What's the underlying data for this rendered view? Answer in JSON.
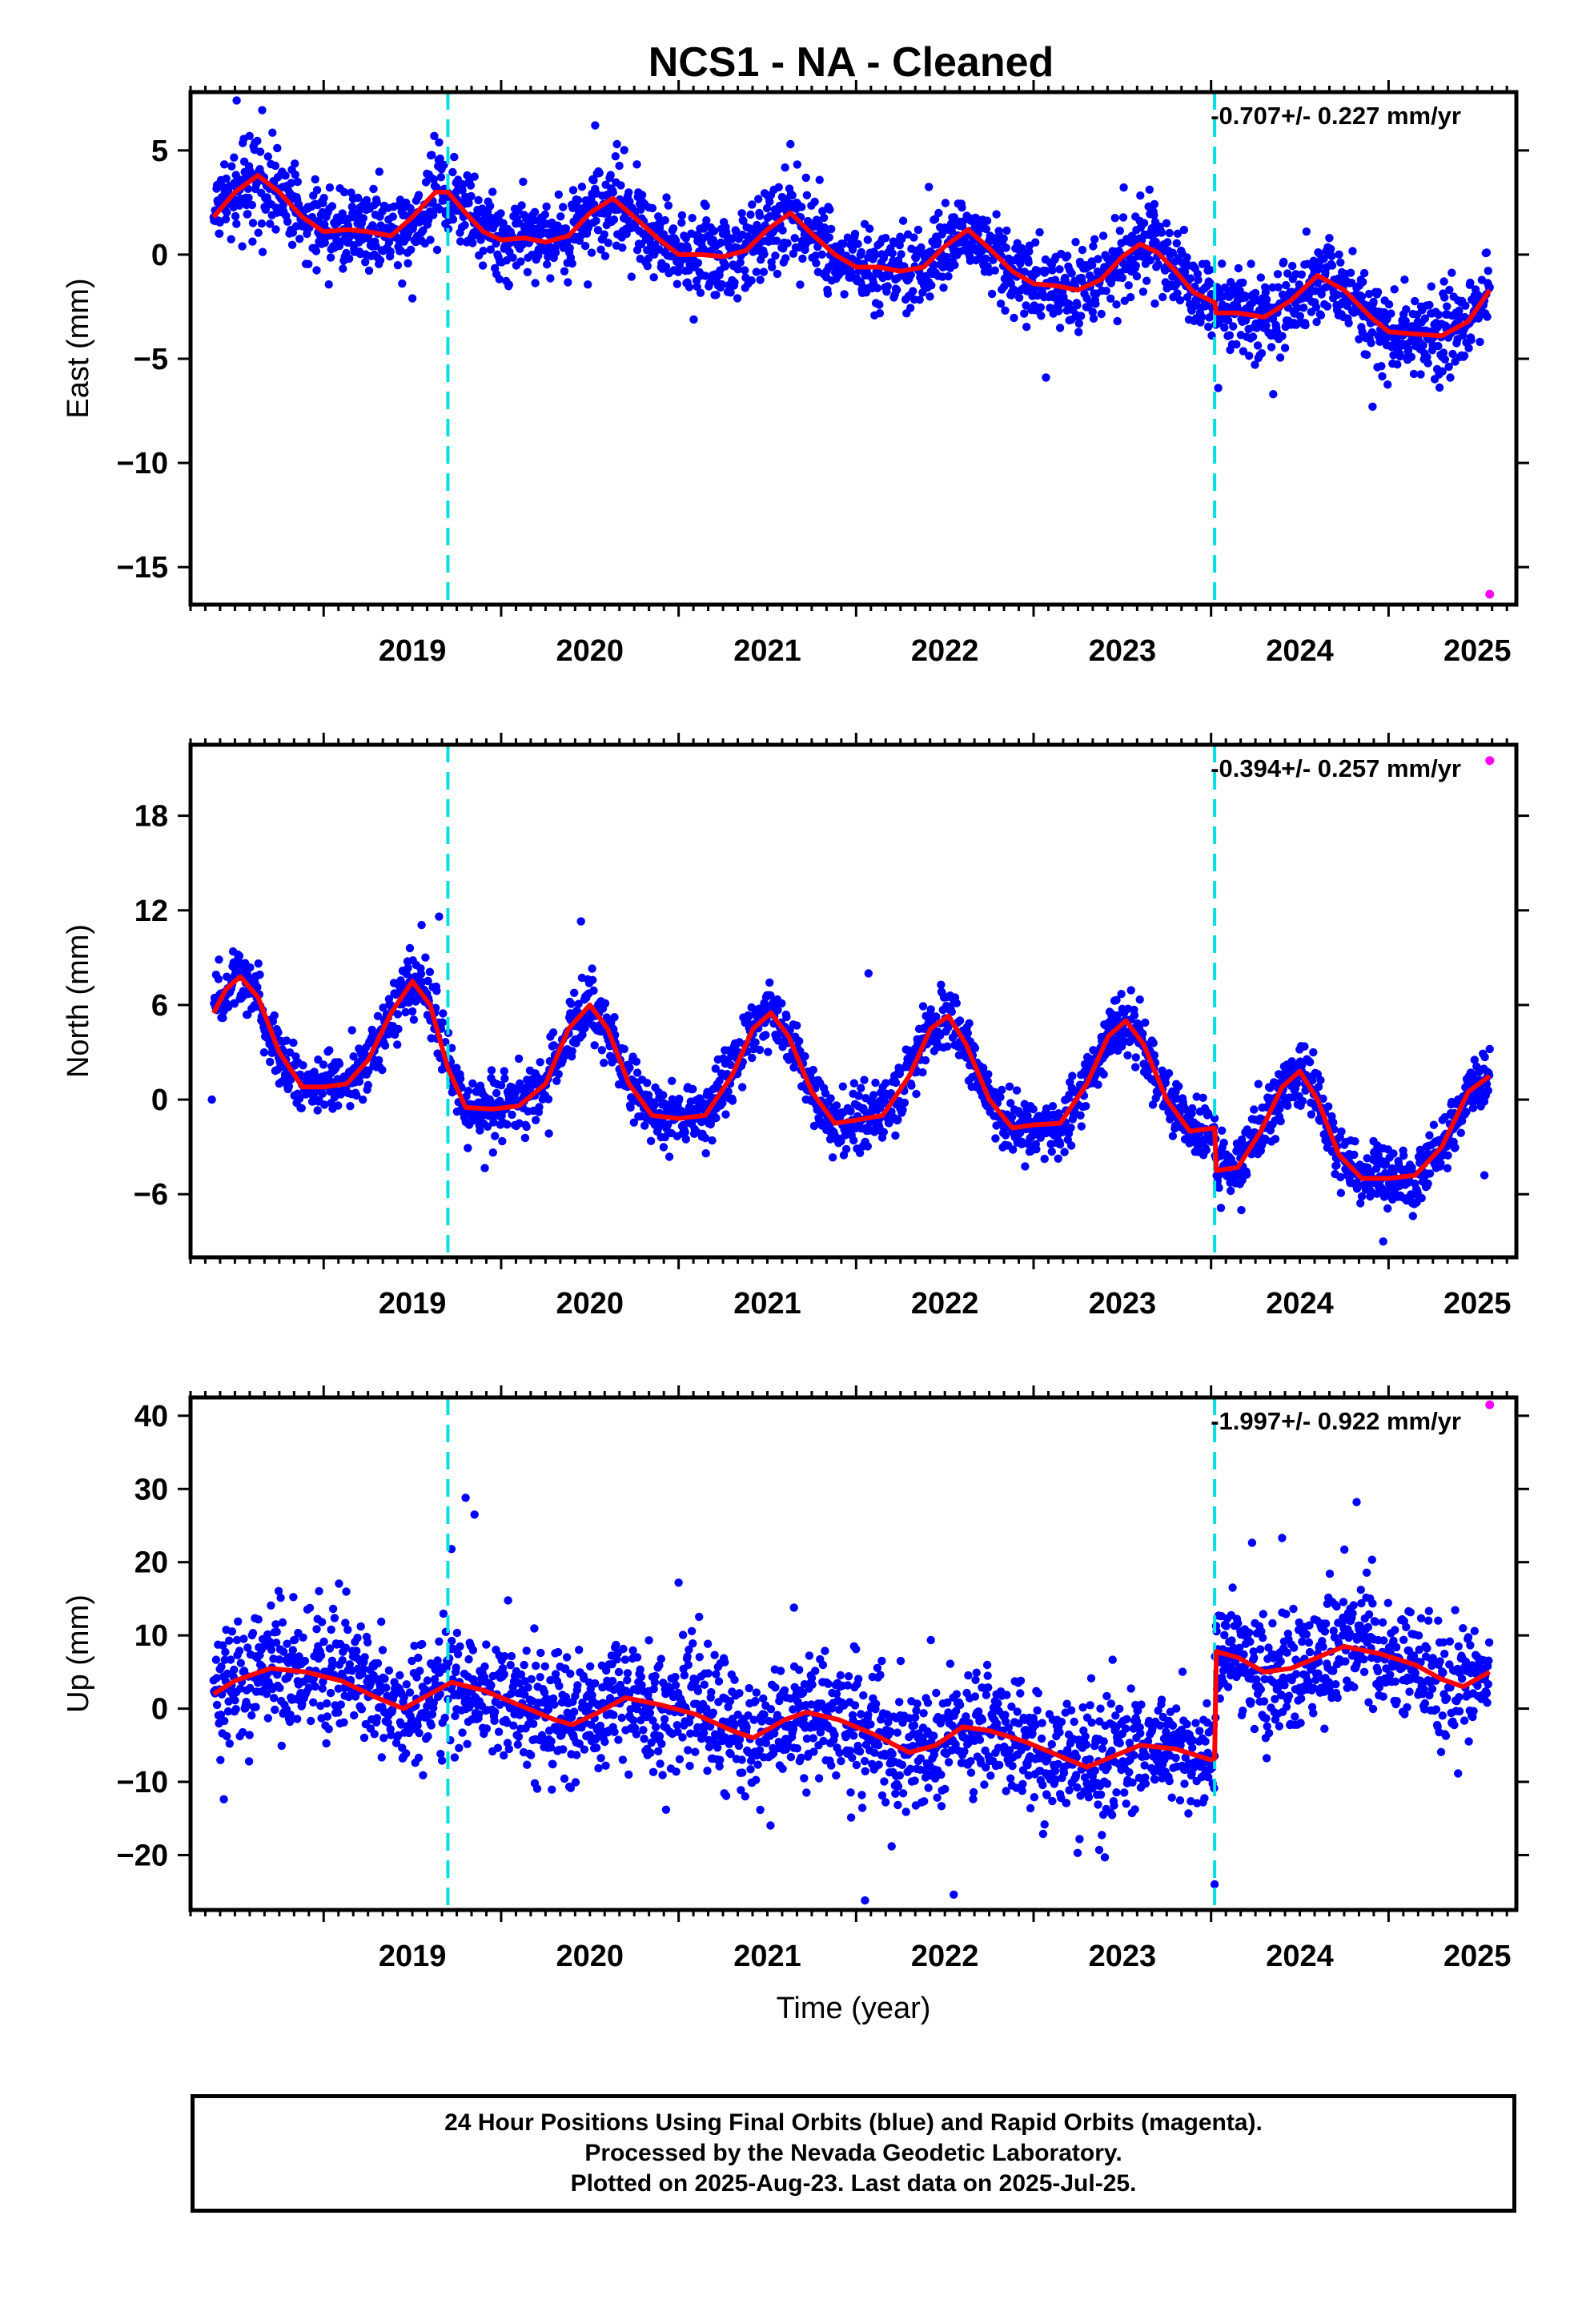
{
  "title": "NCS1  - NA - Cleaned",
  "colors": {
    "final_orbit_points": "#0000ff",
    "rapid_orbit_points": "#ff00ff",
    "model_line": "#ff0000",
    "equipment_change": "#00e0e0"
  },
  "footer": {
    "line1": "24 Hour Positions Using Final Orbits (blue) and Rapid Orbits (magenta).",
    "line2": "Processed by the Nevada Geodetic Laboratory.",
    "line3": "Plotted on 2025-Aug-23. Last data on 2025-Jul-25."
  },
  "chart_data": [
    {
      "type": "scatter",
      "ylabel": "East (mm)",
      "xlabel": "",
      "rate": "-0.707+/- 0.227 mm/yr",
      "xlim": [
        2018.25,
        2025.72
      ],
      "ylim": [
        -16.8,
        7.8
      ],
      "yticks": [
        5,
        0,
        -5,
        -10,
        -15
      ],
      "xticks": [
        2019,
        2020,
        2021,
        2022,
        2023,
        2024,
        2025
      ],
      "vlines": [
        2019.7,
        2024.02
      ],
      "model": [
        [
          2018.38,
          1.8
        ],
        [
          2018.5,
          3.0
        ],
        [
          2018.63,
          3.8
        ],
        [
          2018.75,
          3.0
        ],
        [
          2018.88,
          1.8
        ],
        [
          2019.0,
          1.1
        ],
        [
          2019.13,
          1.2
        ],
        [
          2019.25,
          1.1
        ],
        [
          2019.38,
          0.9
        ],
        [
          2019.5,
          1.8
        ],
        [
          2019.63,
          3.0
        ],
        [
          2019.7,
          3.0
        ],
        [
          2019.8,
          2.0
        ],
        [
          2019.9,
          1.1
        ],
        [
          2020.0,
          0.7
        ],
        [
          2020.13,
          0.8
        ],
        [
          2020.25,
          0.6
        ],
        [
          2020.38,
          0.9
        ],
        [
          2020.5,
          2.0
        ],
        [
          2020.63,
          2.7
        ],
        [
          2020.75,
          1.8
        ],
        [
          2020.88,
          0.8
        ],
        [
          2021.0,
          0.0
        ],
        [
          2021.13,
          0.0
        ],
        [
          2021.25,
          -0.1
        ],
        [
          2021.38,
          0.2
        ],
        [
          2021.5,
          1.2
        ],
        [
          2021.63,
          2.0
        ],
        [
          2021.75,
          1.0
        ],
        [
          2021.88,
          0.0
        ],
        [
          2022.0,
          -0.6
        ],
        [
          2022.13,
          -0.6
        ],
        [
          2022.25,
          -0.8
        ],
        [
          2022.38,
          -0.6
        ],
        [
          2022.5,
          0.4
        ],
        [
          2022.63,
          1.2
        ],
        [
          2022.75,
          0.3
        ],
        [
          2022.88,
          -0.8
        ],
        [
          2023.0,
          -1.4
        ],
        [
          2023.13,
          -1.5
        ],
        [
          2023.25,
          -1.7
        ],
        [
          2023.38,
          -1.2
        ],
        [
          2023.5,
          -0.1
        ],
        [
          2023.6,
          0.5
        ],
        [
          2023.7,
          0.1
        ],
        [
          2023.8,
          -0.8
        ],
        [
          2023.9,
          -1.8
        ],
        [
          2024.02,
          -2.3
        ],
        [
          2024.03,
          -2.8
        ],
        [
          2024.15,
          -2.8
        ],
        [
          2024.3,
          -3.0
        ],
        [
          2024.45,
          -2.2
        ],
        [
          2024.6,
          -1.0
        ],
        [
          2024.75,
          -1.7
        ],
        [
          2024.9,
          -3.0
        ],
        [
          2025.0,
          -3.7
        ],
        [
          2025.13,
          -3.8
        ],
        [
          2025.3,
          -3.9
        ],
        [
          2025.45,
          -3.2
        ],
        [
          2025.57,
          -1.7
        ]
      ],
      "rapid_points": [
        [
          2025.57,
          -16.3
        ]
      ],
      "scatter_sd": 1.0,
      "outliers": [
        [
          2018.51,
          7.4
        ],
        [
          2020.53,
          6.2
        ],
        [
          2021.63,
          5.3
        ],
        [
          2023.07,
          -5.9
        ],
        [
          2024.04,
          -6.4
        ],
        [
          2024.91,
          -7.3
        ],
        [
          2024.35,
          -6.7
        ],
        [
          2019.5,
          -2.1
        ]
      ]
    },
    {
      "type": "scatter",
      "ylabel": "North (mm)",
      "xlabel": "",
      "rate": "-0.394+/- 0.257 mm/yr",
      "xlim": [
        2018.25,
        2025.72
      ],
      "ylim": [
        -10.0,
        22.5
      ],
      "yticks": [
        18,
        12,
        6,
        0,
        -6
      ],
      "xticks": [
        2019,
        2020,
        2021,
        2022,
        2023,
        2024,
        2025
      ],
      "vlines": [
        2019.7,
        2024.02
      ],
      "model": [
        [
          2018.38,
          5.5
        ],
        [
          2018.45,
          7.0
        ],
        [
          2018.53,
          7.8
        ],
        [
          2018.63,
          6.5
        ],
        [
          2018.75,
          3.0
        ],
        [
          2018.88,
          0.8
        ],
        [
          2019.0,
          0.8
        ],
        [
          2019.13,
          1.0
        ],
        [
          2019.25,
          2.5
        ],
        [
          2019.38,
          5.5
        ],
        [
          2019.5,
          7.5
        ],
        [
          2019.6,
          6.0
        ],
        [
          2019.7,
          2.0
        ],
        [
          2019.8,
          -0.5
        ],
        [
          2019.95,
          -0.6
        ],
        [
          2020.1,
          -0.4
        ],
        [
          2020.25,
          1.0
        ],
        [
          2020.38,
          4.5
        ],
        [
          2020.5,
          6.0
        ],
        [
          2020.6,
          4.5
        ],
        [
          2020.72,
          1.0
        ],
        [
          2020.85,
          -1.0
        ],
        [
          2021.0,
          -1.2
        ],
        [
          2021.15,
          -1.0
        ],
        [
          2021.3,
          1.5
        ],
        [
          2021.42,
          4.5
        ],
        [
          2021.52,
          5.5
        ],
        [
          2021.62,
          4.0
        ],
        [
          2021.75,
          0.5
        ],
        [
          2021.88,
          -1.5
        ],
        [
          2022.0,
          -1.3
        ],
        [
          2022.15,
          -1.0
        ],
        [
          2022.3,
          1.5
        ],
        [
          2022.42,
          4.5
        ],
        [
          2022.52,
          5.3
        ],
        [
          2022.62,
          3.5
        ],
        [
          2022.75,
          0.0
        ],
        [
          2022.88,
          -1.8
        ],
        [
          2023.0,
          -1.6
        ],
        [
          2023.15,
          -1.5
        ],
        [
          2023.3,
          1.0
        ],
        [
          2023.42,
          4.0
        ],
        [
          2023.52,
          5.0
        ],
        [
          2023.62,
          3.5
        ],
        [
          2023.75,
          0.0
        ],
        [
          2023.88,
          -2.0
        ],
        [
          2024.02,
          -1.8
        ],
        [
          2024.03,
          -4.5
        ],
        [
          2024.15,
          -4.3
        ],
        [
          2024.28,
          -2.0
        ],
        [
          2024.4,
          0.8
        ],
        [
          2024.5,
          1.8
        ],
        [
          2024.6,
          0.0
        ],
        [
          2024.72,
          -3.5
        ],
        [
          2024.85,
          -5.0
        ],
        [
          2025.0,
          -5.0
        ],
        [
          2025.15,
          -4.8
        ],
        [
          2025.3,
          -3.0
        ],
        [
          2025.45,
          0.5
        ],
        [
          2025.57,
          1.5
        ]
      ],
      "rapid_points": [
        [
          2025.57,
          21.5
        ]
      ],
      "scatter_sd": 0.95,
      "outliers": [
        [
          2019.65,
          11.6
        ],
        [
          2020.45,
          11.3
        ],
        [
          2022.07,
          8.0
        ],
        [
          2024.97,
          -9.0
        ],
        [
          2018.37,
          0.0
        ],
        [
          2019.16,
          4.4
        ],
        [
          2020.1,
          2.6
        ],
        [
          2025.54,
          -4.8
        ]
      ]
    },
    {
      "type": "scatter",
      "ylabel": "Up (mm)",
      "xlabel": "Time (year)",
      "rate": "-1.997+/- 0.922 mm/yr",
      "xlim": [
        2018.25,
        2025.72
      ],
      "ylim": [
        -27.5,
        42.5
      ],
      "yticks": [
        40,
        30,
        20,
        10,
        0,
        -10,
        -20
      ],
      "xticks": [
        2019,
        2020,
        2021,
        2022,
        2023,
        2024,
        2025
      ],
      "vlines": [
        2019.7,
        2024.02
      ],
      "model": [
        [
          2018.38,
          2.0
        ],
        [
          2018.5,
          3.8
        ],
        [
          2018.7,
          5.5
        ],
        [
          2018.9,
          5.0
        ],
        [
          2019.1,
          3.8
        ],
        [
          2019.3,
          1.5
        ],
        [
          2019.45,
          0.0
        ],
        [
          2019.6,
          2.0
        ],
        [
          2019.72,
          3.6
        ],
        [
          2019.9,
          2.5
        ],
        [
          2020.1,
          0.5
        ],
        [
          2020.3,
          -1.5
        ],
        [
          2020.4,
          -2.2
        ],
        [
          2020.55,
          -0.5
        ],
        [
          2020.7,
          1.5
        ],
        [
          2020.9,
          0.5
        ],
        [
          2021.1,
          -0.8
        ],
        [
          2021.3,
          -3.0
        ],
        [
          2021.42,
          -4.0
        ],
        [
          2021.6,
          -1.5
        ],
        [
          2021.72,
          -0.5
        ],
        [
          2021.9,
          -1.5
        ],
        [
          2022.1,
          -3.5
        ],
        [
          2022.3,
          -6.0
        ],
        [
          2022.45,
          -5.0
        ],
        [
          2022.6,
          -2.5
        ],
        [
          2022.75,
          -3.0
        ],
        [
          2022.95,
          -4.5
        ],
        [
          2023.15,
          -6.5
        ],
        [
          2023.3,
          -8.0
        ],
        [
          2023.45,
          -6.5
        ],
        [
          2023.6,
          -5.0
        ],
        [
          2023.8,
          -5.5
        ],
        [
          2024.0,
          -7.0
        ],
        [
          2024.02,
          -6.8
        ],
        [
          2024.03,
          7.8
        ],
        [
          2024.15,
          7.0
        ],
        [
          2024.3,
          5.0
        ],
        [
          2024.45,
          5.5
        ],
        [
          2024.6,
          7.0
        ],
        [
          2024.75,
          8.5
        ],
        [
          2024.95,
          7.5
        ],
        [
          2025.15,
          6.0
        ],
        [
          2025.3,
          4.0
        ],
        [
          2025.42,
          3.0
        ],
        [
          2025.57,
          5.0
        ]
      ],
      "rapid_points": [
        [
          2025.57,
          41.5
        ]
      ],
      "scatter_sd": 4.3,
      "outliers": [
        [
          2019.8,
          28.8
        ],
        [
          2019.85,
          26.5
        ],
        [
          2019.72,
          21.8
        ],
        [
          2021.0,
          17.2
        ],
        [
          2021.65,
          13.8
        ],
        [
          2022.05,
          -26.2
        ],
        [
          2022.55,
          -25.4
        ],
        [
          2024.82,
          28.2
        ],
        [
          2024.4,
          23.3
        ],
        [
          2024.02,
          -24.0
        ],
        [
          2022.2,
          -18.8
        ],
        [
          2023.37,
          -19.3
        ]
      ]
    }
  ]
}
